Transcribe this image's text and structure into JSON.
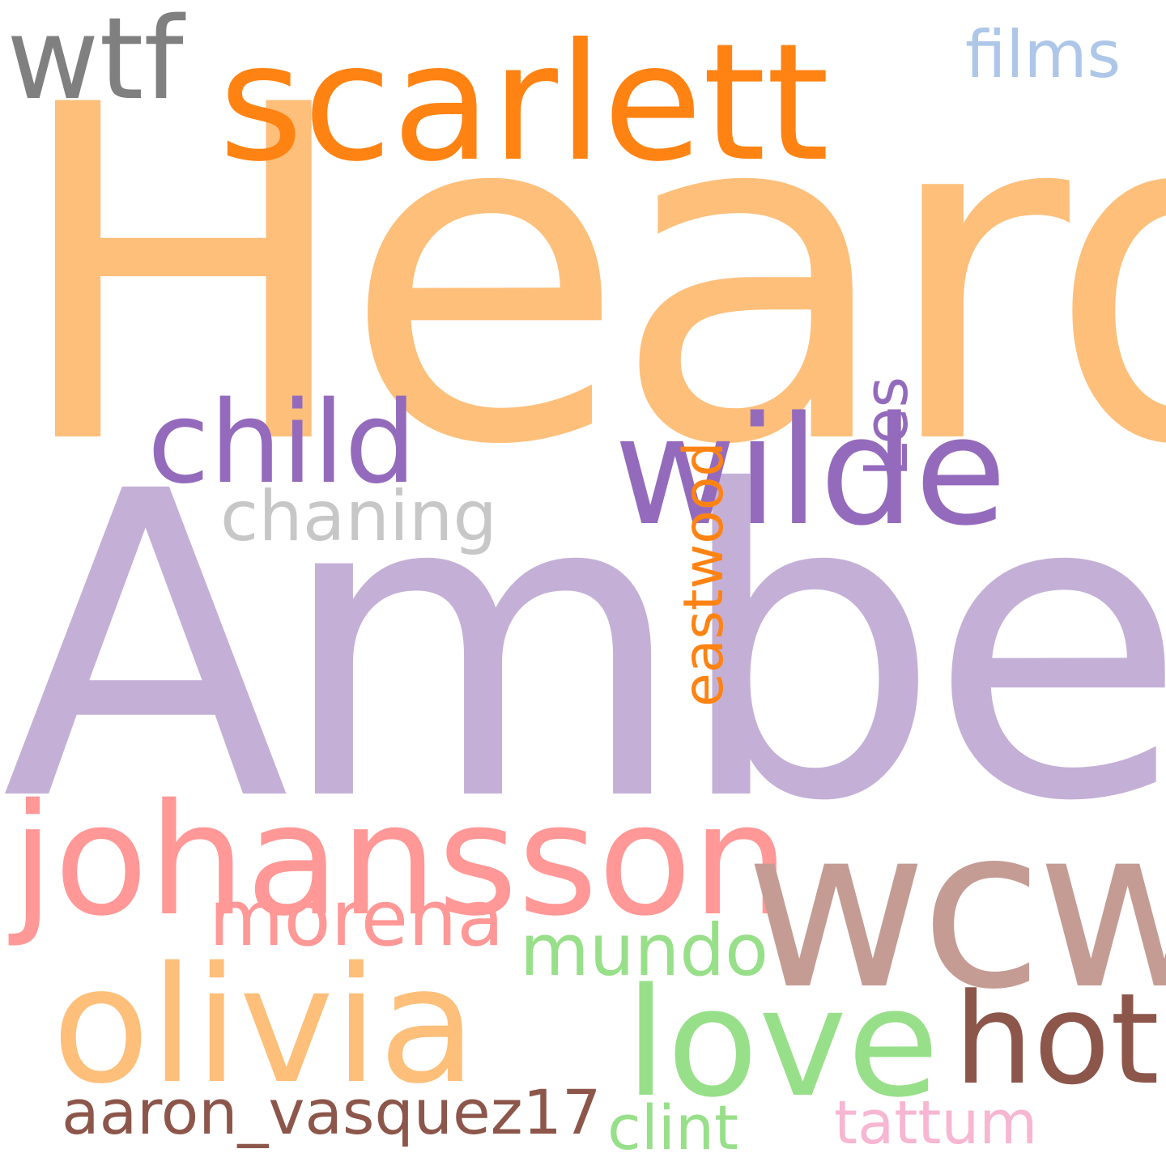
{
  "cloud": {
    "words": {
      "heard": {
        "text": "Heard",
        "color": "#fdbf7a"
      },
      "amber": {
        "text": "Amber",
        "color": "#c4b0d6"
      },
      "scarlett": {
        "text": "scarlett",
        "color": "#ff8313"
      },
      "wtf": {
        "text": "wtf",
        "color": "#808080"
      },
      "films": {
        "text": "films",
        "color": "#aec7e8"
      },
      "child": {
        "text": "child",
        "color": "#946bbc"
      },
      "wilde": {
        "text": "wilde",
        "color": "#946bbc"
      },
      "chaning": {
        "text": "chaning",
        "color": "#c7c7c7"
      },
      "eastwood": {
        "text": "eastwood",
        "color": "#ff8313"
      },
      "les": {
        "text": "Les",
        "color": "#946bbc"
      },
      "johansson": {
        "text": "johansson",
        "color": "#ff9896"
      },
      "wcw": {
        "text": "wcw",
        "color": "#c49c94"
      },
      "morena": {
        "text": "morena",
        "color": "#ff9896"
      },
      "mundo": {
        "text": "mundo",
        "color": "#98df8a"
      },
      "olivia": {
        "text": "olivia",
        "color": "#fdbf7a"
      },
      "love": {
        "text": "love",
        "color": "#98df8a"
      },
      "hot": {
        "text": "hot",
        "color": "#8c564b"
      },
      "aaron": {
        "text": "aaron_vasquez17",
        "color": "#8c564b"
      },
      "clint": {
        "text": "clint",
        "color": "#98df8a"
      },
      "tattum": {
        "text": "tattum",
        "color": "#f7b6d2"
      }
    }
  }
}
